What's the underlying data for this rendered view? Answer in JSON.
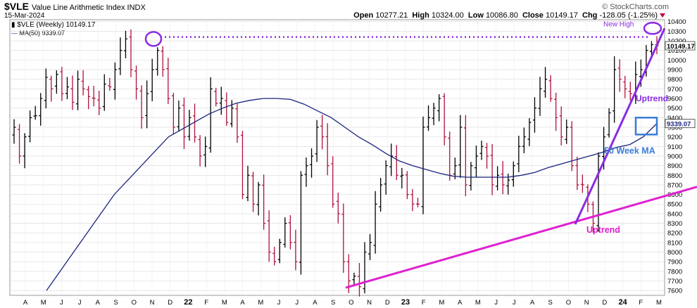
{
  "header": {
    "symbol": "$VLE",
    "name": "Value Line Arithmetic Index  INDX",
    "date": "15-Mar-2024",
    "brand": "© StockCharts.com",
    "open_label": "Open",
    "open": "10277.21",
    "high_label": "High",
    "high": "10324.00",
    "low_label": "Low",
    "low": "10086.80",
    "close_label": "Close",
    "close": "10149.17",
    "chg_label": "Chg",
    "chg": "-128.05 (-1.25%)",
    "legend_price": "$VLE (Weekly) 10149.17",
    "legend_ma": "MA(50) 9339.07"
  },
  "chart_data": {
    "type": "ohlc",
    "ylim": [
      7550,
      10420
    ],
    "y_ticks": [
      7600,
      7700,
      7800,
      7900,
      8000,
      8100,
      8200,
      8300,
      8400,
      8500,
      8600,
      8700,
      8800,
      8900,
      9000,
      9100,
      9200,
      9300,
      9400,
      9500,
      9600,
      9700,
      9800,
      9900,
      10000,
      10100,
      10200,
      10300,
      10400
    ],
    "x_labels": [
      "A",
      "M",
      "J",
      "J",
      "A",
      "S",
      "O",
      "N",
      "D",
      "22",
      "F",
      "M",
      "A",
      "M",
      "J",
      "J",
      "A",
      "S",
      "O",
      "N",
      "D",
      "23",
      "F",
      "M",
      "A",
      "M",
      "J",
      "J",
      "A",
      "S",
      "O",
      "N",
      "D",
      "24",
      "F",
      "M"
    ],
    "price_last_label": "10149.17",
    "ma_last_label": "9339.07",
    "weekly_closes": [
      9300,
      9000,
      9200,
      9400,
      9420,
      9600,
      9820,
      9700,
      9850,
      9650,
      9720,
      9560,
      9800,
      9700,
      9620,
      9600,
      9500,
      9750,
      9720,
      9900,
      10100,
      10220,
      9900,
      9700,
      9400,
      9650,
      9900,
      10100,
      9900,
      9600,
      9300,
      9500,
      9200,
      9400,
      9200,
      9000,
      9100,
      9700,
      9550,
      9600,
      9350,
      9500,
      9200,
      8600,
      8800,
      8500,
      8700,
      8300,
      8000,
      7900,
      8100,
      8300,
      8100,
      7900,
      8800,
      8900,
      9000,
      9300,
      9200,
      8900,
      8500,
      8400,
      7900,
      7700,
      7750,
      7640,
      8000,
      8100,
      8500,
      8700,
      8900,
      9000,
      8800,
      8800,
      8600,
      8500,
      8500,
      9300,
      9400,
      9500,
      9600,
      9200,
      8800,
      8900,
      9300,
      8700,
      8900,
      9000,
      9100,
      9000,
      8700,
      8800,
      8700,
      8750,
      8900,
      9100,
      9200,
      9350,
      9500,
      9700,
      9800,
      9600,
      9400,
      9200,
      9300,
      8900,
      8700,
      8700,
      8500,
      8300,
      9000,
      9200,
      9450,
      9900,
      9800,
      9700,
      9650,
      9850,
      9900,
      10100,
      10160,
      10149
    ],
    "ma50": [
      7600,
      7800,
      8000,
      8200,
      8400,
      8600,
      8750,
      8900,
      9050,
      9200,
      9280,
      9360,
      9440,
      9500,
      9550,
      9580,
      9600,
      9600,
      9590,
      9540,
      9470,
      9400,
      9300,
      9200,
      9120,
      9030,
      8950,
      8900,
      8860,
      8820,
      8790,
      8780,
      8780,
      8780,
      8780,
      8800,
      8830,
      8880,
      8920,
      8960,
      9000,
      9040,
      9090,
      9120,
      9200,
      9339.07
    ],
    "annotations": {
      "new_high": "New High",
      "uptrend_short": "Uptrend",
      "uptrend_long": "Uptrend",
      "ma_label": "50 Week MA"
    },
    "colors": {
      "up_bar": "#000000",
      "down_bar": "#b0103c",
      "ma": "#1a237e",
      "trend_purple": "#8a2be2",
      "trend_magenta": "#e020d0",
      "ma_box": "#3a7bd5",
      "grid": "#d8d8d8"
    }
  }
}
